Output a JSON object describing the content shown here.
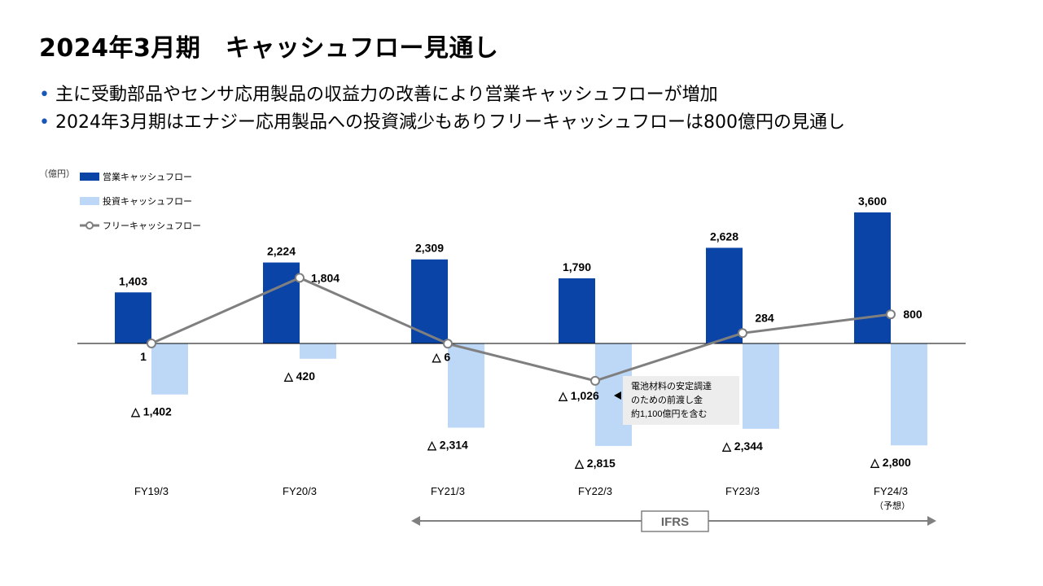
{
  "page": {
    "title": "2024年3月期　キャッシュフロー見通し",
    "bullets": [
      "主に受動部品やセンサ応用製品の収益力の改善により営業キャッシュフローが増加",
      "2024年3月期はエナジー応用製品への投資減少もありフリーキャッシュフローは800億円の見通し"
    ]
  },
  "chart_data": {
    "type": "bar",
    "unit_label": "（億円）",
    "categories": [
      "FY19/3",
      "FY20/3",
      "FY21/3",
      "FY22/3",
      "FY23/3",
      "FY24/3"
    ],
    "forecast_note": "（予想）",
    "series": [
      {
        "name": "営業キャッシュフロー",
        "type": "bar",
        "color": "#0a44a6",
        "values": [
          1403,
          2224,
          2309,
          1790,
          2628,
          3600
        ],
        "labels": [
          "1,403",
          "2,224",
          "2,309",
          "1,790",
          "2,628",
          "3,600"
        ]
      },
      {
        "name": "投資キャッシュフロー",
        "type": "bar",
        "color": "#bdd7f7",
        "values": [
          -1402,
          -420,
          -2314,
          -2815,
          -2344,
          -2800
        ],
        "labels": [
          "△ 1,402",
          "△ 420",
          "△ 2,314",
          "△ 2,815",
          "△ 2,344",
          "△ 2,800"
        ]
      },
      {
        "name": "フリーキャッシュフロー",
        "type": "line",
        "color": "#7f7f7f",
        "values": [
          1,
          1804,
          -6,
          -1026,
          284,
          800
        ],
        "labels": [
          "1",
          "1,804",
          "△ 6",
          "△ 1,026",
          "284",
          "800"
        ]
      }
    ],
    "annotation": [
      "電池材料の安定調達",
      "のための前渡し金",
      "約1,100億円を含む"
    ],
    "ifrs_label": "IFRS",
    "ylim": [
      -3300,
      4000
    ],
    "grid": false,
    "legend_position": "top-left"
  }
}
